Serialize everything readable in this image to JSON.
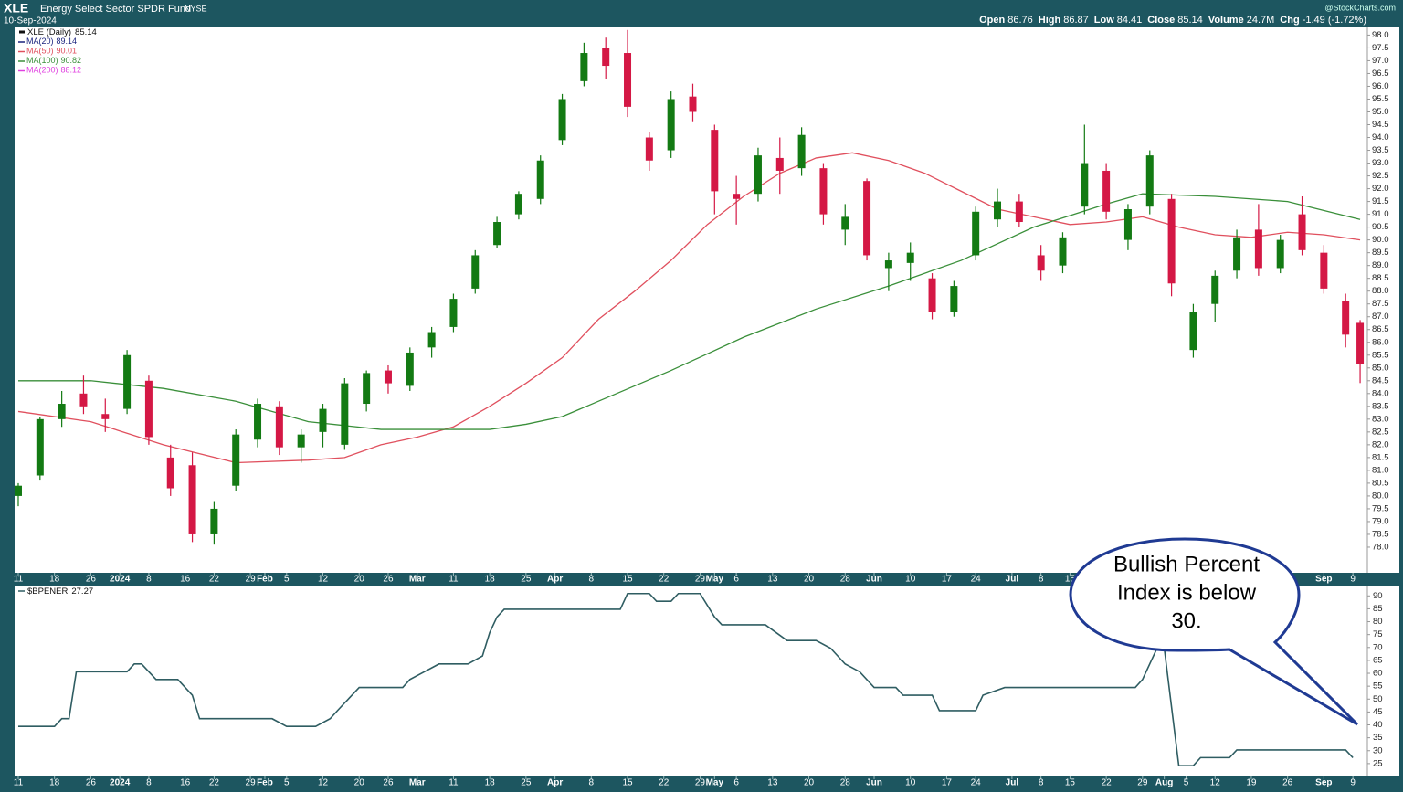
{
  "chart_data": {
    "type": "candlestick",
    "symbol": "XLE",
    "fund_name": "Energy Select Sector SPDR Fund",
    "exchange": "NYSE",
    "date": "10-Sep-2024",
    "credit": "@StockCharts.com",
    "stats": [
      {
        "label": "Open",
        "value": 86.76
      },
      {
        "label": "High",
        "value": 86.87
      },
      {
        "label": "Low",
        "value": 84.41
      },
      {
        "label": "Close",
        "value": 85.14
      },
      {
        "label": "Volume",
        "value": "24.7M"
      },
      {
        "label": "Chg",
        "value": "-1.49 (-1.72%)"
      }
    ],
    "price_label": "XLE (Daily)",
    "last": 85.14,
    "up_color": "#137a13",
    "down_color": "#d41845",
    "xlim": [
      -0.25,
      186
    ],
    "ylim": [
      77,
      98.3
    ],
    "xticks": [
      {
        "value": 0,
        "label": "11"
      },
      {
        "value": 5,
        "label": "18"
      },
      {
        "value": 10,
        "label": "26"
      },
      {
        "value": 14,
        "label": "2024"
      },
      {
        "value": 18,
        "label": "8"
      },
      {
        "value": 23,
        "label": "16"
      },
      {
        "value": 27,
        "label": "22"
      },
      {
        "value": 32,
        "label": "29"
      },
      {
        "value": 34,
        "label": "Feb"
      },
      {
        "value": 37,
        "label": "5"
      },
      {
        "value": 42,
        "label": "12"
      },
      {
        "value": 47,
        "label": "20"
      },
      {
        "value": 51,
        "label": "26"
      },
      {
        "value": 55,
        "label": "Mar"
      },
      {
        "value": 60,
        "label": "11"
      },
      {
        "value": 65,
        "label": "18"
      },
      {
        "value": 70,
        "label": "25"
      },
      {
        "value": 74,
        "label": "Apr"
      },
      {
        "value": 79,
        "label": "8"
      },
      {
        "value": 84,
        "label": "15"
      },
      {
        "value": 89,
        "label": "22"
      },
      {
        "value": 94,
        "label": "29"
      },
      {
        "value": 96,
        "label": "May"
      },
      {
        "value": 99,
        "label": "6"
      },
      {
        "value": 104,
        "label": "13"
      },
      {
        "value": 109,
        "label": "20"
      },
      {
        "value": 114,
        "label": "28"
      },
      {
        "value": 118,
        "label": "Jun"
      },
      {
        "value": 123,
        "label": "10"
      },
      {
        "value": 128,
        "label": "17"
      },
      {
        "value": 132,
        "label": "24"
      },
      {
        "value": 137,
        "label": "Jul"
      },
      {
        "value": 141,
        "label": "8"
      },
      {
        "value": 145,
        "label": "15"
      },
      {
        "value": 150,
        "label": "22"
      },
      {
        "value": 155,
        "label": "29"
      },
      {
        "value": 158,
        "label": "Aug"
      },
      {
        "value": 161,
        "label": "5"
      },
      {
        "value": 165,
        "label": "12"
      },
      {
        "value": 170,
        "label": "19"
      },
      {
        "value": 175,
        "label": "26"
      },
      {
        "value": 180,
        "label": "Sep"
      },
      {
        "value": 184,
        "label": "9"
      }
    ],
    "yticks": [
      {
        "value": 78,
        "label": "78.0"
      },
      78.5,
      {
        "value": 79,
        "label": "79.0"
      },
      79.5,
      {
        "value": 80,
        "label": "80.0"
      },
      80.5,
      {
        "value": 81,
        "label": "81.0"
      },
      81.5,
      {
        "value": 82,
        "label": "82.0"
      },
      82.5,
      {
        "value": 83,
        "label": "83.0"
      },
      83.5,
      {
        "value": 84,
        "label": "84.0"
      },
      84.5,
      {
        "value": 85,
        "label": "85.0"
      },
      85.5,
      {
        "value": 86,
        "label": "86.0"
      },
      86.5,
      {
        "value": 87,
        "label": "87.0"
      },
      87.5,
      {
        "value": 88,
        "label": "88.0"
      },
      88.5,
      {
        "value": 89,
        "label": "89.0"
      },
      89.5,
      {
        "value": 90,
        "label": "90.0"
      },
      90.5,
      {
        "value": 91,
        "label": "91.0"
      },
      91.5,
      {
        "value": 92,
        "label": "92.0"
      },
      92.5,
      {
        "value": 93,
        "label": "93.0"
      },
      93.5,
      {
        "value": 94,
        "label": "94.0"
      },
      94.5,
      {
        "value": 95,
        "label": "95.0"
      },
      95.5,
      {
        "value": 96,
        "label": "96.0"
      },
      96.5,
      {
        "value": 97,
        "label": "97.0"
      },
      97.5,
      {
        "value": 98,
        "label": "98.0"
      }
    ],
    "candles": [
      [
        0,
        80.0,
        80.5,
        79.6,
        80.4
      ],
      [
        3,
        80.8,
        83.1,
        80.6,
        83.0
      ],
      [
        6,
        83.0,
        84.1,
        82.7,
        83.6
      ],
      [
        9,
        84.0,
        84.7,
        83.2,
        83.5
      ],
      [
        12,
        83.2,
        83.8,
        82.5,
        83.0
      ],
      [
        15,
        83.4,
        85.7,
        83.2,
        85.5
      ],
      [
        18,
        84.5,
        84.7,
        82.0,
        82.3
      ],
      [
        21,
        81.5,
        82.0,
        80.0,
        80.3
      ],
      [
        24,
        81.2,
        81.7,
        78.2,
        78.5
      ],
      [
        27,
        78.5,
        79.8,
        78.1,
        79.5
      ],
      [
        30,
        80.4,
        82.6,
        80.2,
        82.4
      ],
      [
        33,
        82.2,
        83.8,
        81.9,
        83.6
      ],
      [
        36,
        83.5,
        83.7,
        81.6,
        81.9
      ],
      [
        39,
        81.9,
        82.6,
        81.3,
        82.4
      ],
      [
        42,
        82.5,
        83.6,
        81.9,
        83.4
      ],
      [
        45,
        82.0,
        84.6,
        81.8,
        84.4
      ],
      [
        48,
        83.6,
        84.9,
        83.3,
        84.8
      ],
      [
        51,
        84.9,
        85.1,
        84.0,
        84.4
      ],
      [
        54,
        84.3,
        85.8,
        84.1,
        85.6
      ],
      [
        57,
        85.8,
        86.6,
        85.4,
        86.4
      ],
      [
        60,
        86.6,
        87.9,
        86.4,
        87.7
      ],
      [
        63,
        88.1,
        89.6,
        87.9,
        89.4
      ],
      [
        66,
        89.8,
        90.9,
        89.7,
        90.7
      ],
      [
        69,
        91.0,
        91.9,
        90.8,
        91.8
      ],
      [
        72,
        91.6,
        93.3,
        91.4,
        93.1
      ],
      [
        75,
        93.9,
        95.7,
        93.7,
        95.5
      ],
      [
        78,
        96.2,
        97.7,
        96.0,
        97.3
      ],
      [
        81,
        97.5,
        97.9,
        96.3,
        96.8
      ],
      [
        84,
        97.3,
        98.2,
        94.8,
        95.2
      ],
      [
        87,
        94.0,
        94.2,
        92.7,
        93.1
      ],
      [
        90,
        93.5,
        95.8,
        93.2,
        95.5
      ],
      [
        93,
        95.6,
        96.1,
        94.6,
        95.0
      ],
      [
        96,
        94.3,
        94.5,
        91.0,
        91.9
      ],
      [
        99,
        91.8,
        92.5,
        90.6,
        91.6
      ],
      [
        102,
        91.8,
        93.6,
        91.5,
        93.3
      ],
      [
        105,
        93.2,
        94.0,
        91.8,
        92.7
      ],
      [
        108,
        92.8,
        94.4,
        92.5,
        94.1
      ],
      [
        111,
        92.8,
        93.0,
        90.6,
        91.0
      ],
      [
        114,
        90.4,
        91.4,
        89.8,
        90.9
      ],
      [
        117,
        92.3,
        92.4,
        89.2,
        89.4
      ],
      [
        120,
        88.9,
        89.5,
        88.0,
        89.2
      ],
      [
        123,
        89.1,
        89.9,
        88.4,
        89.5
      ],
      [
        126,
        88.5,
        88.7,
        86.9,
        87.2
      ],
      [
        129,
        87.2,
        88.4,
        87.0,
        88.2
      ],
      [
        132,
        89.4,
        91.3,
        89.2,
        91.1
      ],
      [
        135,
        90.8,
        92.0,
        90.5,
        91.5
      ],
      [
        138,
        91.5,
        91.8,
        90.5,
        90.7
      ],
      [
        141,
        89.4,
        89.8,
        88.4,
        88.8
      ],
      [
        144,
        89.0,
        90.3,
        88.7,
        90.1
      ],
      [
        147,
        91.3,
        94.5,
        91.0,
        93.0
      ],
      [
        150,
        92.7,
        93.0,
        90.8,
        91.1
      ],
      [
        153,
        90.0,
        91.4,
        89.6,
        91.2
      ],
      [
        156,
        91.3,
        93.5,
        91.0,
        93.3
      ],
      [
        159,
        91.6,
        91.8,
        87.8,
        88.3
      ],
      [
        162,
        85.7,
        87.5,
        85.4,
        87.2
      ],
      [
        165,
        87.5,
        88.8,
        86.8,
        88.6
      ],
      [
        168,
        88.8,
        90.4,
        88.5,
        90.1
      ],
      [
        171,
        90.4,
        91.4,
        88.6,
        88.9
      ],
      [
        174,
        88.9,
        90.2,
        88.7,
        90.0
      ],
      [
        177,
        91.0,
        91.7,
        89.4,
        89.6
      ],
      [
        180,
        89.5,
        89.8,
        87.9,
        88.1
      ],
      [
        183,
        87.6,
        87.9,
        85.8,
        86.3
      ],
      [
        185,
        86.76,
        86.87,
        84.41,
        85.14
      ]
    ],
    "moving_averages": [
      {
        "name": "MA(20)",
        "last": 89.14,
        "color": "#1a237e"
      },
      {
        "name": "MA(50)",
        "last": 90.01,
        "color": "#e0505e",
        "x": [
          0,
          10,
          20,
          30,
          40,
          45,
          50,
          55,
          60,
          65,
          70,
          75,
          80,
          85,
          90,
          95,
          100,
          105,
          110,
          115,
          120,
          125,
          130,
          135,
          140,
          145,
          150,
          155,
          160,
          165,
          170,
          175,
          180,
          185
        ],
        "values": [
          83.3,
          82.9,
          82.0,
          81.3,
          81.4,
          81.5,
          82.0,
          82.3,
          82.7,
          83.5,
          84.4,
          85.4,
          86.9,
          88.0,
          89.2,
          90.6,
          91.7,
          92.6,
          93.2,
          93.4,
          93.1,
          92.6,
          91.9,
          91.2,
          90.9,
          90.6,
          90.7,
          90.9,
          90.5,
          90.2,
          90.1,
          90.3,
          90.2,
          90.0
        ]
      },
      {
        "name": "MA(100)",
        "last": 90.82,
        "color": "#3a8f3a",
        "x": [
          0,
          10,
          20,
          30,
          40,
          50,
          55,
          65,
          70,
          75,
          80,
          90,
          100,
          110,
          120,
          130,
          140,
          150,
          155,
          165,
          175,
          185
        ],
        "values": [
          84.5,
          84.5,
          84.2,
          83.7,
          82.9,
          82.6,
          82.6,
          82.6,
          82.8,
          83.1,
          83.7,
          84.9,
          86.2,
          87.3,
          88.2,
          89.2,
          90.5,
          91.4,
          91.8,
          91.7,
          91.5,
          90.8
        ]
      },
      {
        "name": "MA(200)",
        "last": 88.12,
        "color": "#e040e0"
      }
    ],
    "indicator": {
      "type": "line",
      "name": "$BPENER",
      "last": 27.27,
      "color": "#2f5d62",
      "ylim": [
        20,
        94
      ],
      "yticks": [
        25,
        30,
        35,
        40,
        45,
        50,
        55,
        60,
        65,
        70,
        75,
        80,
        85,
        90
      ],
      "x": [
        0,
        5,
        6,
        7,
        8,
        15,
        16,
        17,
        18,
        19,
        22,
        24,
        25,
        35,
        37,
        41,
        43,
        44,
        45,
        47,
        53,
        54,
        56,
        58,
        62,
        64,
        65,
        66,
        67,
        83,
        84,
        87,
        88,
        90,
        91,
        94,
        96,
        97,
        103,
        106,
        110,
        112,
        114,
        116,
        118,
        121,
        122,
        126,
        127,
        132,
        133,
        136,
        154,
        155,
        157,
        158,
        160,
        162,
        163,
        164,
        167,
        168,
        183,
        184
      ],
      "values": [
        39.4,
        39.4,
        42.4,
        42.4,
        60.6,
        60.6,
        63.6,
        63.6,
        60.6,
        57.6,
        57.6,
        51.5,
        42.4,
        42.4,
        39.4,
        39.4,
        42.4,
        45.5,
        48.5,
        54.5,
        54.5,
        57.6,
        60.6,
        63.6,
        63.6,
        66.7,
        75.8,
        81.8,
        84.8,
        84.8,
        90.9,
        90.9,
        87.9,
        87.9,
        90.9,
        90.9,
        81.8,
        78.8,
        78.8,
        72.7,
        72.7,
        69.7,
        63.6,
        60.6,
        54.5,
        54.5,
        51.5,
        51.5,
        45.5,
        45.5,
        51.5,
        54.5,
        54.5,
        57.6,
        69.7,
        69.7,
        24.2,
        24.2,
        27.3,
        27.3,
        27.3,
        30.3,
        30.3,
        27.27
      ]
    },
    "annotation": [
      "Bullish Percent",
      "Index is below",
      "30."
    ]
  }
}
